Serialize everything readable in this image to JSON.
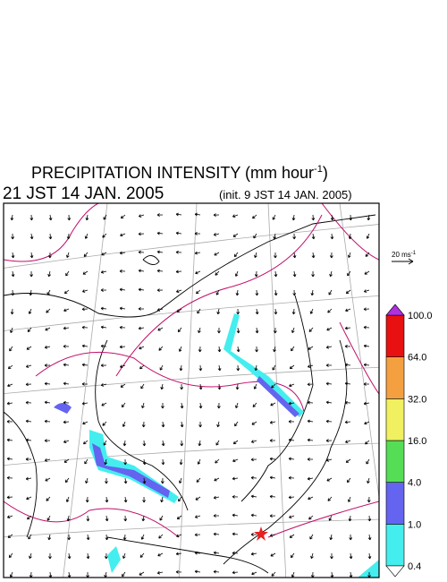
{
  "header": {
    "title_main": "PRECIPITATION INTENSITY (mm hour",
    "title_sup": "-1",
    "title_end": ")",
    "time": "21 JST 14 JAN. 2005",
    "init": "(init. 9 JST 14 JAN. 2005)"
  },
  "wind_scale": {
    "label": "20 ms",
    "sup": "-1"
  },
  "colorbar": {
    "levels": [
      "0.4",
      "1.0",
      "4.0",
      "16.0",
      "32.0",
      "64.0",
      "100.0"
    ],
    "colors": [
      "#44eeee",
      "#6464f0",
      "#55dd55",
      "#f0f060",
      "#f4a040",
      "#e81010"
    ],
    "over_color": "#b030e0",
    "under_color": "#ffffff"
  }
}
